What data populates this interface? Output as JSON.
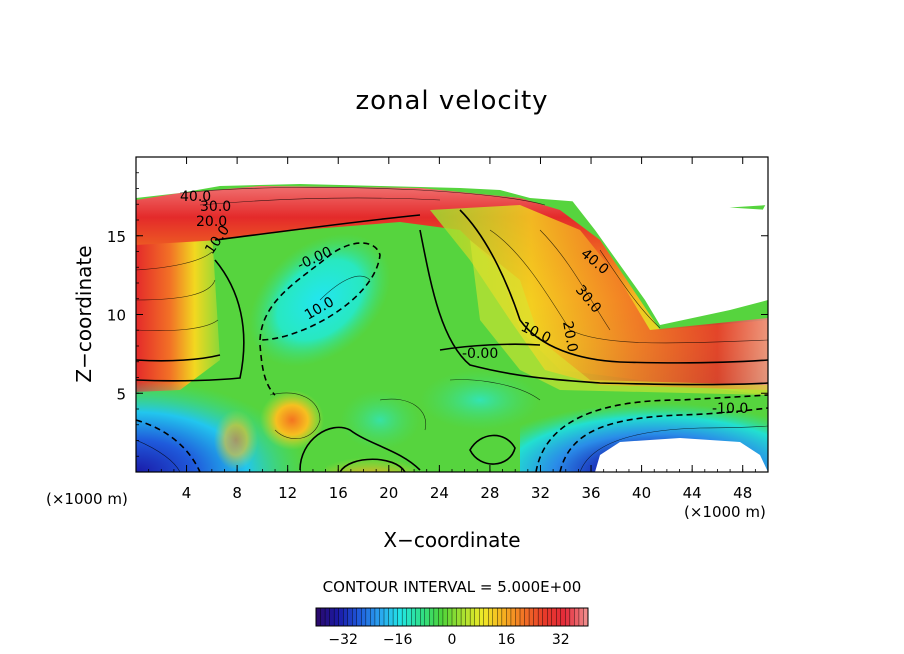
{
  "chart_data": {
    "type": "heatmap",
    "subtype": "filled contour",
    "title": "zonal velocity",
    "xlabel": "X−coordinate",
    "ylabel": "Z−coordinate",
    "x_unit_left": "(×1000 m)",
    "x_unit_right": "(×1000 m)",
    "xlim": [
      0,
      50
    ],
    "ylim": [
      0,
      20
    ],
    "x_ticks": [
      4,
      8,
      12,
      16,
      20,
      24,
      28,
      32,
      36,
      40,
      44,
      48
    ],
    "y_ticks": [
      5,
      10,
      15
    ],
    "contour_interval_text": "CONTOUR INTERVAL = 5.000E+00",
    "contour_labels": [
      "40.0",
      "30.0",
      "20.0",
      "10.0",
      "-0.00",
      "10.0",
      "10.0",
      "20.0",
      "30.0",
      "40.0",
      "-0.00",
      "-10.0"
    ],
    "colorbar": {
      "range": [
        -40,
        40
      ],
      "ticks": [
        -32,
        -16,
        0,
        16,
        32
      ],
      "colors": [
        "#2a0a6e",
        "#1a1aa8",
        "#1f5bdc",
        "#2aa4f0",
        "#22e6e6",
        "#2ee08a",
        "#4ed43a",
        "#a6e030",
        "#f0ea28",
        "#f6b020",
        "#f27226",
        "#e83a2a",
        "#e42a3a",
        "#f08a8a"
      ]
    },
    "blank_regions": [
      "top band above ~z 17",
      "lower-right region x 36–49, z 0–4",
      "upper-right region x 36–49, z 9–18"
    ]
  }
}
